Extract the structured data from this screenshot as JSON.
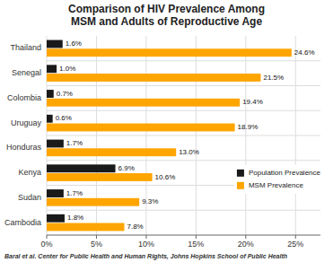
{
  "chart_data": {
    "type": "bar",
    "orientation": "horizontal",
    "title": "Comparison of HIV Prevalence Among\nMSM and Adults of Reproductive Age",
    "categories": [
      "Thailand",
      "Senegal",
      "Colombia",
      "Uruguay",
      "Honduras",
      "Kenya",
      "Sudan",
      "Cambodia"
    ],
    "series": [
      {
        "name": "Population Prevalence",
        "color": "#1a1a1a",
        "values": [
          1.6,
          1.0,
          0.7,
          0.6,
          1.7,
          6.9,
          1.7,
          1.8
        ],
        "value_labels": [
          "1.6%",
          "1.0%",
          "0.7%",
          "0.6%",
          "1.7%",
          "6.9%",
          "1.7%",
          "1.8%"
        ]
      },
      {
        "name": "MSM Prevalence",
        "color": "#FFA500",
        "values": [
          24.6,
          21.5,
          19.4,
          18.9,
          13.0,
          10.6,
          9.3,
          7.8
        ],
        "value_labels": [
          "24.6%",
          "21.5%",
          "19.4%",
          "18.9%",
          "13.0%",
          "10.6%",
          "9.3%",
          "7.8%"
        ]
      }
    ],
    "xlim": [
      0,
      27.5
    ],
    "xticks": [
      {
        "value": 0,
        "label": "0%"
      },
      {
        "value": 5,
        "label": "5%"
      },
      {
        "value": 10,
        "label": "10%"
      },
      {
        "value": 15,
        "label": "15%"
      },
      {
        "value": 20,
        "label": "20%"
      },
      {
        "value": 25,
        "label": "25%"
      }
    ],
    "grid": true,
    "legend": "right",
    "data_labels": true,
    "annotations": [
      "Baral et al. Center for Public Health and Human Rights, Johns Hopkins School of Public Health"
    ]
  }
}
